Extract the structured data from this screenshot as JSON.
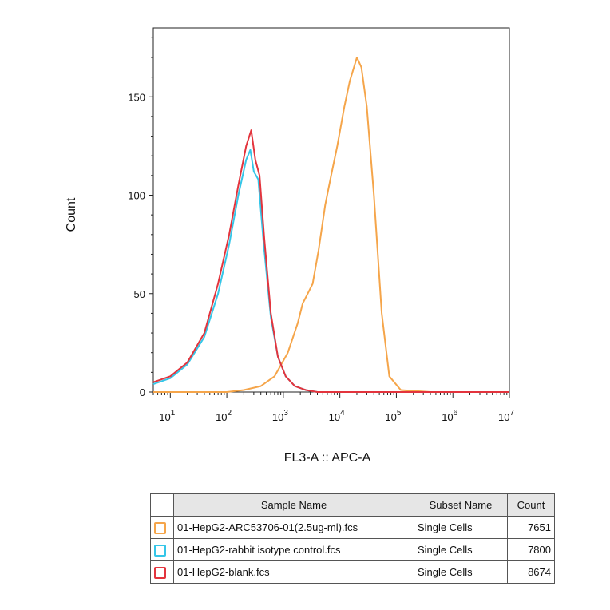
{
  "chart_data": {
    "type": "histogram",
    "xlabel": "FL3-A :: APC-A",
    "ylabel": "Count",
    "x_scale": "log",
    "xlim": [
      5,
      10000000
    ],
    "ylim": [
      0,
      185
    ],
    "x_ticks": [
      "10^1",
      "10^2",
      "10^3",
      "10^4",
      "10^5",
      "10^6",
      "10^7"
    ],
    "y_ticks": [
      0,
      50,
      100,
      150
    ],
    "series": [
      {
        "name": "01-HepG2-ARC53706-01(2.5ug-ml).fcs",
        "color": "#f5a54a",
        "points": [
          [
            5,
            0
          ],
          [
            100,
            0
          ],
          [
            200,
            1
          ],
          [
            400,
            3
          ],
          [
            700,
            8
          ],
          [
            1200,
            20
          ],
          [
            1800,
            35
          ],
          [
            2200,
            45
          ],
          [
            2700,
            50
          ],
          [
            3300,
            55
          ],
          [
            4200,
            72
          ],
          [
            5500,
            95
          ],
          [
            7000,
            110
          ],
          [
            9000,
            125
          ],
          [
            12000,
            145
          ],
          [
            15000,
            158
          ],
          [
            20000,
            170
          ],
          [
            24000,
            165
          ],
          [
            30000,
            145
          ],
          [
            40000,
            100
          ],
          [
            55000,
            40
          ],
          [
            75000,
            8
          ],
          [
            120000,
            1
          ],
          [
            400000,
            0
          ],
          [
            10000000,
            0
          ]
        ]
      },
      {
        "name": "01-HepG2-rabbit isotype control.fcs",
        "color": "#35c6e8",
        "points": [
          [
            5,
            4
          ],
          [
            10,
            7
          ],
          [
            20,
            14
          ],
          [
            40,
            28
          ],
          [
            70,
            50
          ],
          [
            110,
            75
          ],
          [
            160,
            100
          ],
          [
            220,
            118
          ],
          [
            260,
            123
          ],
          [
            300,
            112
          ],
          [
            360,
            108
          ],
          [
            450,
            75
          ],
          [
            600,
            38
          ],
          [
            800,
            18
          ],
          [
            1100,
            8
          ],
          [
            1600,
            3
          ],
          [
            2500,
            1
          ],
          [
            4000,
            0
          ],
          [
            10000000,
            0
          ]
        ]
      },
      {
        "name": "01-HepG2-blank.fcs",
        "color": "#e3343d",
        "points": [
          [
            5,
            5
          ],
          [
            10,
            8
          ],
          [
            20,
            15
          ],
          [
            40,
            30
          ],
          [
            70,
            55
          ],
          [
            110,
            80
          ],
          [
            160,
            105
          ],
          [
            220,
            125
          ],
          [
            270,
            133
          ],
          [
            320,
            118
          ],
          [
            380,
            110
          ],
          [
            460,
            78
          ],
          [
            600,
            40
          ],
          [
            800,
            18
          ],
          [
            1100,
            8
          ],
          [
            1600,
            3
          ],
          [
            2500,
            1
          ],
          [
            4000,
            0
          ],
          [
            10000000,
            0
          ]
        ]
      }
    ],
    "table": {
      "headers": [
        "Sample Name",
        "Subset Name",
        "Count"
      ],
      "rows": [
        [
          "01-HepG2-ARC53706-01(2.5ug-ml).fcs",
          "Single Cells",
          "7651"
        ],
        [
          "01-HepG2-rabbit isotype control.fcs",
          "Single Cells",
          "7800"
        ],
        [
          "01-HepG2-blank.fcs",
          "Single Cells",
          "8674"
        ]
      ]
    }
  }
}
